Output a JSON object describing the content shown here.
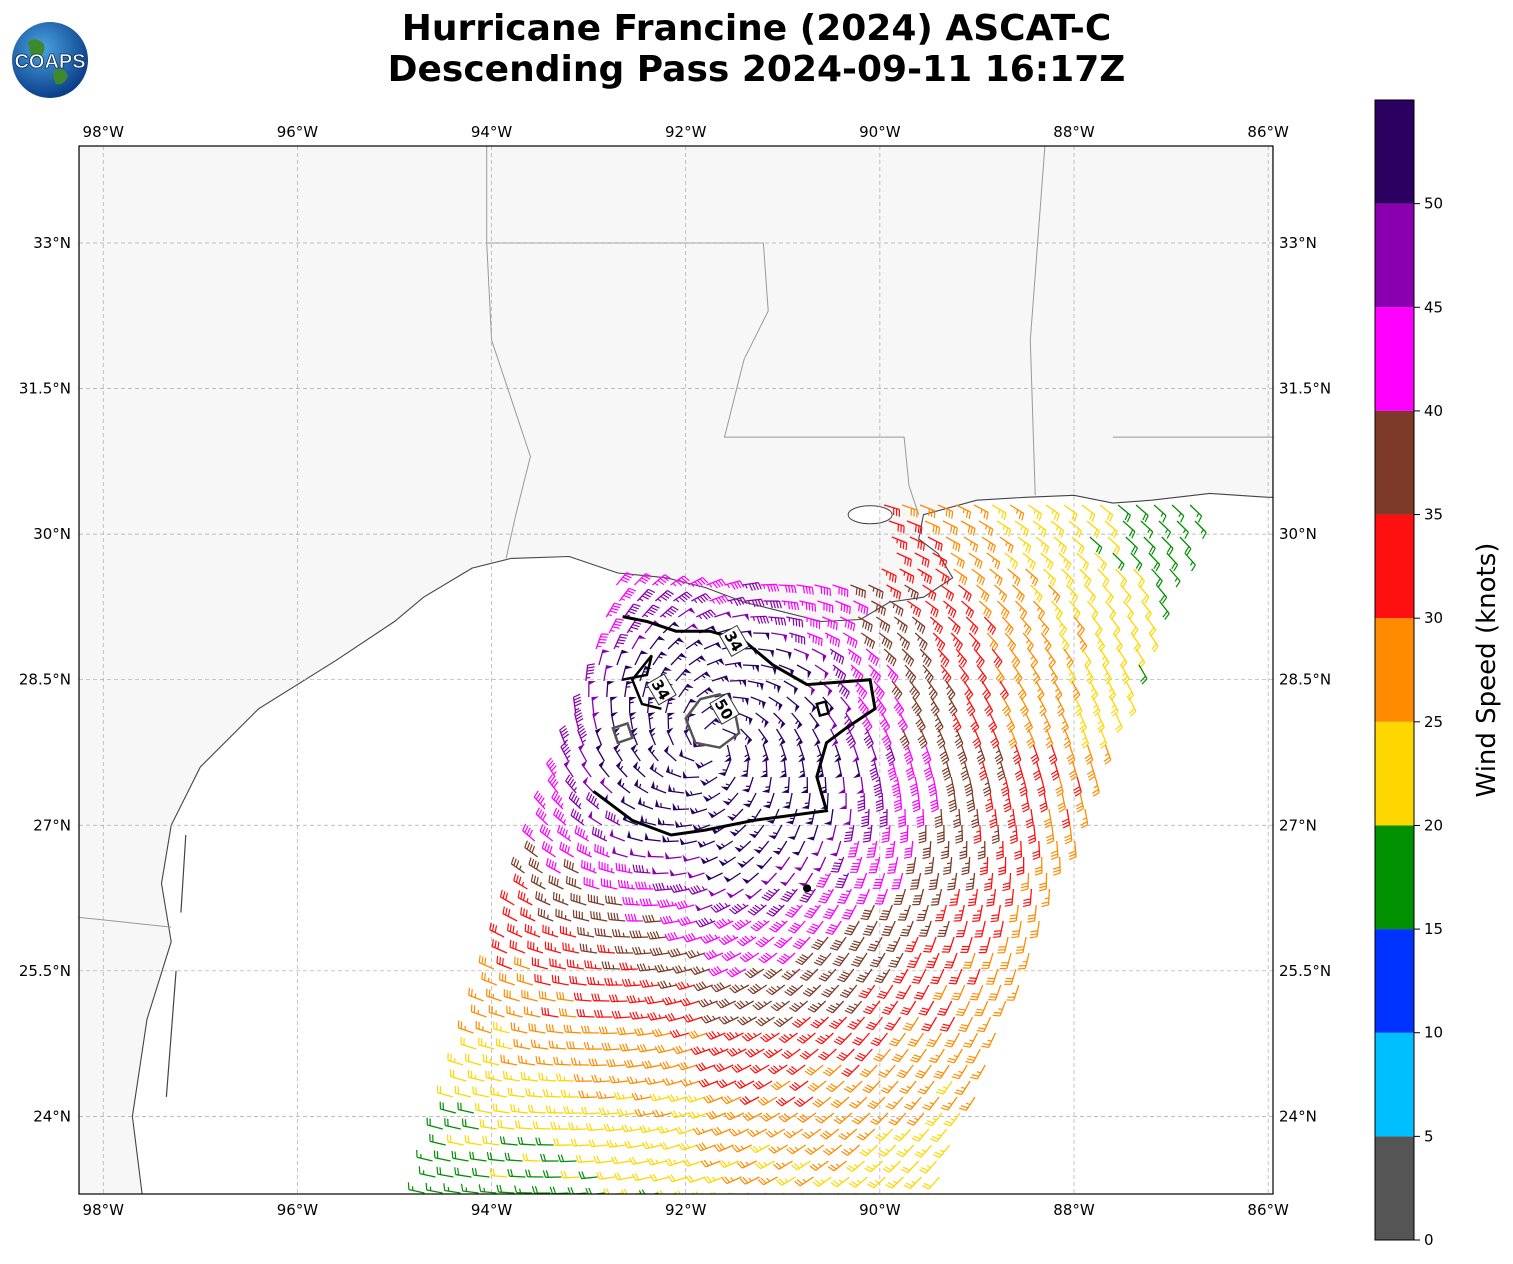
{
  "title": {
    "line1": "Hurricane Francine (2024) ASCAT-C",
    "line2": "Descending Pass 2024-09-11 16:17Z"
  },
  "logo": {
    "text": "COAPS",
    "icon": "globe-icon"
  },
  "map": {
    "lon_range": [
      -98.25,
      -85.95
    ],
    "lat_range": [
      23.2,
      34.0
    ],
    "lon_ticks": [
      {
        "value": -98,
        "label": "98°W"
      },
      {
        "value": -96,
        "label": "96°W"
      },
      {
        "value": -94,
        "label": "94°W"
      },
      {
        "value": -92,
        "label": "92°W"
      },
      {
        "value": -90,
        "label": "90°W"
      },
      {
        "value": -88,
        "label": "88°W"
      },
      {
        "value": -86,
        "label": "86°W"
      }
    ],
    "lat_ticks": [
      {
        "value": 24,
        "label": "24°N"
      },
      {
        "value": 25.5,
        "label": "25.5°N"
      },
      {
        "value": 27,
        "label": "27°N"
      },
      {
        "value": 28.5,
        "label": "28.5°N"
      },
      {
        "value": 30,
        "label": "30°N"
      },
      {
        "value": 31.5,
        "label": "31.5°N"
      },
      {
        "value": 33,
        "label": "33°N"
      }
    ],
    "gridlines": true,
    "contour_labels": [
      {
        "text": "34",
        "lon": -91.5,
        "lat": 28.9
      },
      {
        "text": "34",
        "lon": -92.25,
        "lat": 28.4
      },
      {
        "text": "50",
        "lon": -91.6,
        "lat": 28.2
      }
    ],
    "storm_center": {
      "lon": -91.75,
      "lat": 27.85
    },
    "marker": {
      "lon": -90.75,
      "lat": 26.35
    }
  },
  "colorbar": {
    "title": "Wind Speed (knots)",
    "ticks": [
      "0",
      "5",
      "10",
      "15",
      "20",
      "25",
      "30",
      "35",
      "40",
      "45",
      "50"
    ],
    "bins": [
      {
        "min": 0,
        "max": 5,
        "color": "#555555"
      },
      {
        "min": 5,
        "max": 10,
        "color": "#00bfff"
      },
      {
        "min": 10,
        "max": 15,
        "color": "#0033ff"
      },
      {
        "min": 15,
        "max": 20,
        "color": "#009000"
      },
      {
        "min": 20,
        "max": 25,
        "color": "#ffd700"
      },
      {
        "min": 25,
        "max": 30,
        "color": "#ff8c00"
      },
      {
        "min": 30,
        "max": 35,
        "color": "#ff1010"
      },
      {
        "min": 35,
        "max": 40,
        "color": "#7d3a28"
      },
      {
        "min": 40,
        "max": 45,
        "color": "#ff00ff"
      },
      {
        "min": 45,
        "max": 50,
        "color": "#8a00b0"
      },
      {
        "min": 50,
        "max": 55,
        "color": "#2b0060"
      }
    ]
  },
  "colors": {
    "land": "#f7f7f7",
    "coast": "#444444",
    "border": "#999999",
    "grid": "#aaaaaa",
    "contour": "#000000"
  }
}
